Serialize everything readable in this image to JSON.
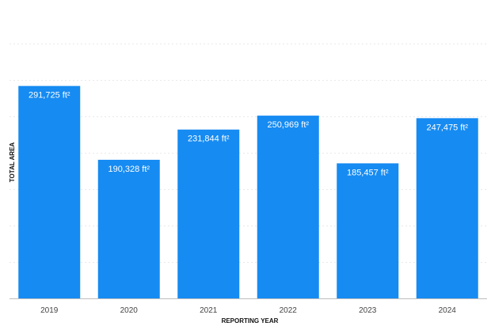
{
  "chart_data": {
    "type": "bar",
    "xlabel": "REPORTING YEAR",
    "ylabel": "TOTAL AREA",
    "categories": [
      "2019",
      "2020",
      "2021",
      "2022",
      "2023",
      "2024"
    ],
    "values": [
      291725,
      190328,
      231844,
      250969,
      185457,
      247475
    ],
    "data_labels": [
      "291,725 ft²",
      "190,328 ft²",
      "231,844 ft²",
      "250,969 ft²",
      "185,457 ft²",
      "247,475 ft²"
    ],
    "ylim": [
      0,
      350000
    ],
    "grid": true,
    "legend": false,
    "bar_color": "#168bf2"
  }
}
